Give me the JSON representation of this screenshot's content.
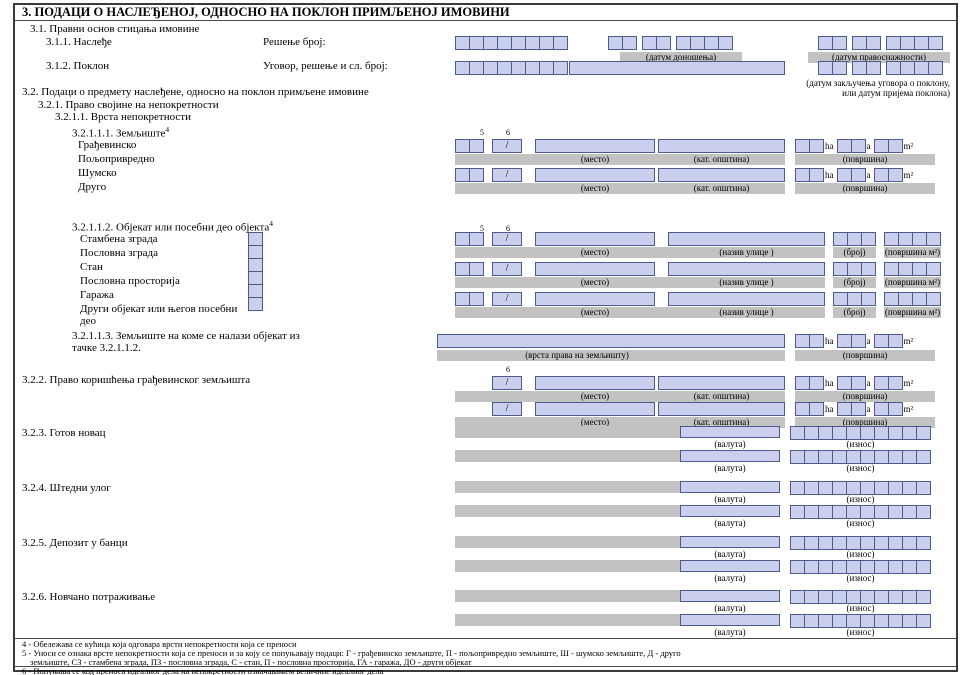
{
  "title": "3. ПОДАЦИ О НАСЛЕЂЕНОЈ, ОДНОСНО НА ПОКЛОН ПРИМЉЕНОЈ ИМОВИНИ",
  "colors": {
    "field_fill": "#c9cfec",
    "field_border": "#4d5a8c",
    "strip_grey": "#c2c2c2"
  },
  "headings": {
    "h31": "3.1. Правни основ стицања имовине",
    "h32": "3.2. Подаци о предмету наслеђене, односно на поклон примљене имовине",
    "h321": "3.2.1. Право својине на непокретности",
    "h3211": "3.2.1.1. Врста непокретности",
    "h32111": "3.2.1.1.1.  Земљиште",
    "h32112": "3.2.1.1.2. Објекат или посебни део објекта",
    "h32113_line1": "3.2.1.1.3. Земљиште на коме се налази објекат из",
    "h32113_line2": "тачке 3.2.1.1.2.",
    "h322": "3.2.2.  Право коришћења грађевинског земљишта",
    "h323": "3.2.3.  Готов новац",
    "h324": "3.2.4.  Штедни улог",
    "h325": "3.2.5.  Депозит у банци",
    "h326": "3.2.6.  Новчано потраживање"
  },
  "row_nasledje": {
    "label": "3.1.1. Наслеђе",
    "field_label": "Решење број:",
    "date1_caption": "(датум доношења)",
    "date2_caption": "(датум правоснажности)"
  },
  "row_poklon": {
    "label": "3.1.2. Поклон",
    "field_label": "Уговор, решење и сл. број:",
    "date_caption_line1": "(датум закључења уговора о поклону,",
    "date_caption_line2": "или датум пријема поклона)"
  },
  "land_types": [
    "Грађевинско",
    "Пољопривредно",
    "Шумско",
    "Друго"
  ],
  "object_types": [
    "Стамбена зграда",
    "Пословна зграда",
    "Стан",
    "Пословна просторија",
    "Гаража",
    "Други објекат или његов посебни део"
  ],
  "captions": {
    "mesto": "(место)",
    "kat_opstina": "(кат. општина)",
    "povrsina": "(површина)",
    "naziv_ulice": "(назив улице )",
    "broj": "(број)",
    "povrsina_m2": "(површина м²)",
    "vrsta_prava": "(врста права на земљишту)",
    "valuta": "(валута)",
    "iznos": "(износ)"
  },
  "units": {
    "ha": "ha",
    "a": "a",
    "m2": "m²"
  },
  "marks": {
    "fn4": "4",
    "fn5": "5",
    "fn6": "6",
    "slash": "/"
  },
  "footnotes": {
    "f4": "4 - Обележава се кућица која одговара врсти непокретности која се преноси",
    "f5_line1": "5 - Уноси се ознака врсте непокретности која се преноси и за коју се попуњавају подаци: Г - грађевинско земљиште, П - пољопривредно земљиште, Ш - шумско земљиште, Д - друго",
    "f5_line2": "земљиште, СЗ - стамбена зграда, ПЗ - пословна зграда, С - стан, П - пословна просторија, ГА - гаража, ДО - други објекат",
    "f6": "6 - Попуњава се код преноса идеалног дела на непокретности означавањем величине идеалног дела"
  }
}
